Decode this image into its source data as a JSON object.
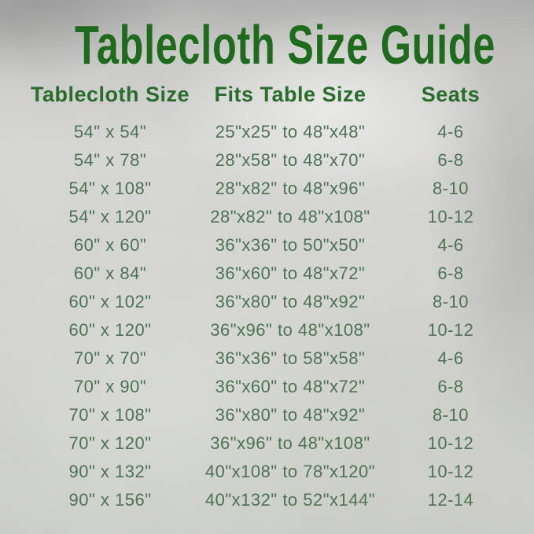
{
  "title": "Tablecloth Size Guide",
  "colors": {
    "title_green": "#1e6b1e",
    "header_green": "#2a6c2c",
    "body_green": "#4d7355",
    "background_silver": "#cdcfca"
  },
  "chart_data": {
    "type": "table",
    "title": "Tablecloth Size Guide",
    "columns": [
      "Tablecloth Size",
      "Fits Table Size",
      "Seats"
    ],
    "rows": [
      [
        "54\" x 54\"",
        "25\"x25\" to 48\"x48\"",
        "4-6"
      ],
      [
        "54\" x 78\"",
        "28\"x58\" to 48\"x70\"",
        "6-8"
      ],
      [
        "54\" x 108\"",
        "28\"x82\" to 48\"x96\"",
        "8-10"
      ],
      [
        "54\" x 120\"",
        "28\"x82\" to 48\"x108\"",
        "10-12"
      ],
      [
        "60\" x 60\"",
        "36\"x36\" to 50\"x50\"",
        "4-6"
      ],
      [
        "60\" x 84\"",
        "36\"x60\" to 48\"x72\"",
        "6-8"
      ],
      [
        "60\" x 102\"",
        "36\"x80\" to 48\"x92\"",
        "8-10"
      ],
      [
        "60\" x 120\"",
        "36\"x96\" to 48\"x108\"",
        "10-12"
      ],
      [
        "70\" x 70\"",
        "36\"x36\" to 58\"x58\"",
        "4-6"
      ],
      [
        "70\" x 90\"",
        "36\"x60\" to 48\"x72\"",
        "6-8"
      ],
      [
        "70\" x 108\"",
        "36\"x80\" to 48\"x92\"",
        "8-10"
      ],
      [
        "70\" x 120\"",
        "36\"x96\" to 48\"x108\"",
        "10-12"
      ],
      [
        "90\" x 132\"",
        "40\"x108\" to 78\"x120\"",
        "10-12"
      ],
      [
        "90\" x 156\"",
        "40\"x132\" to 52\"x144\"",
        "12-14"
      ]
    ]
  }
}
